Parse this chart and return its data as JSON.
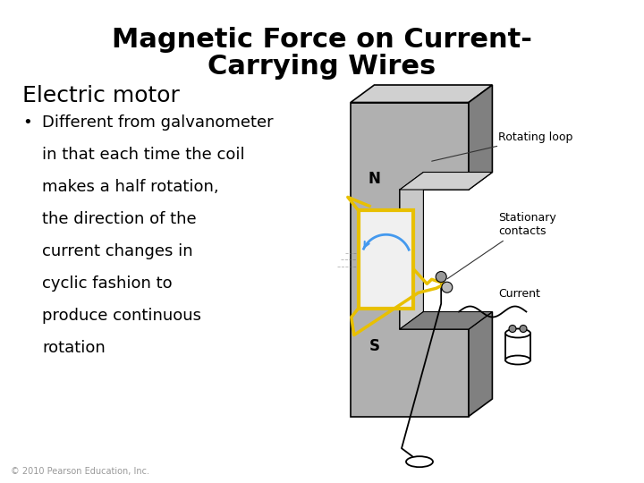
{
  "title_line1": "Magnetic Force on Current-",
  "title_line2": "Carrying Wires",
  "subtitle": "Electric motor",
  "bullet_text": "Different from galvanometer\nin that each time the coil\nmakes a half rotation,\nthe direction of the\ncurrent changes in\ncyclic fashion to\nproduce continuous\nrotation",
  "bullet_marker": "•",
  "copyright": "© 2010 Pearson Education, Inc.",
  "bg_color": "#ffffff",
  "title_color": "#000000",
  "subtitle_color": "#000000",
  "bullet_color": "#000000",
  "copyright_color": "#999999",
  "title_fontsize": 22,
  "subtitle_fontsize": 18,
  "bullet_fontsize": 13,
  "copyright_fontsize": 7,
  "label_fontsize": 9,
  "ns_fontsize": 12,
  "box_gray": "#b0b0b0",
  "box_dark": "#808080",
  "box_light": "#d0d0d0",
  "gap_color": "#c8c8c8",
  "coil_yellow": "#e8c000",
  "coil_white": "#f0f0f0",
  "blue_arrow": "#4499ee",
  "wire_black": "#111111",
  "label_arrow_color": "#333333"
}
